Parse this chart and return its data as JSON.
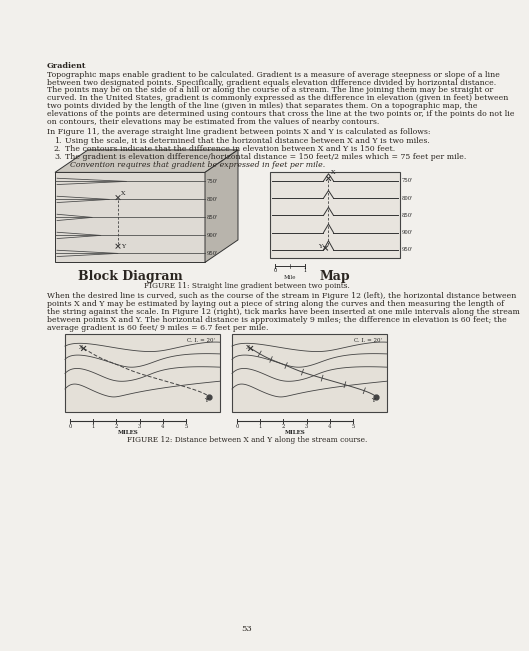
{
  "page_bg": "#f2f0ec",
  "text_color": "#2a2520",
  "title": "Gradient",
  "paragraph1_lines": [
    "Topographic maps enable gradient to be calculated. Gradient is a measure of average steepness or slope of a line",
    "between two designated points. Specifically, gradient equals elevation difference divided by horizontal distance.",
    "The points may be on the side of a hill or along the course of a stream. The line joining them may be straight or",
    "curved. In the United States, gradient is commonly expressed as the difference in elevation (given in feet) between",
    "two points divided by the length of the line (given in miles) that separates them. On a topographic map, the",
    "elevations of the points are determined using contours that cross the line at the two points or, if the points do not lie",
    "on contours, their elevations may be estimated from the values of nearby contours."
  ],
  "intro_sentence": "In Figure 11, the average straight line gradient between points X and Y is calculated as follows:",
  "list_items": [
    "Using the scale, it is determined that the horizontal distance between X and Y is two miles.",
    "The contours indicate that the difference in elevation between X and Y is 150 feet.",
    "The gradient is elevation difference/horizontal distance = 150 feet/2 miles which = 75 feet per mile.",
    "Convention requires that gradient be expressed in feet per mile."
  ],
  "block_label": "Block Diagram",
  "map_label": "Map",
  "fig11_caption": "FIGURE 11: Straight line gradient between two points.",
  "para2_lines": [
    "When the desired line is curved, such as the course of the stream in Figure 12 (left), the horizontal distance between",
    "points X and Y may be estimated by laying out a piece of string along the curves and then measuring the length of",
    "the string against the scale. In Figure 12 (right), tick marks have been inserted at one mile intervals along the stream",
    "between points X and Y. The horizontal distance is approximately 9 miles; the difference in elevation is 60 feet; the",
    "average gradient is 60 feet/ 9 miles = 6.7 feet per mile."
  ],
  "fig12_caption": "FIGURE 12: Distance between X and Y along the stream course.",
  "page_number": "53",
  "contour_labels_block": [
    "950'",
    "900'",
    "850'",
    "800'",
    "750'"
  ],
  "contour_labels_map": [
    "950'",
    "900'",
    "850'",
    "800'",
    "750'"
  ],
  "ci_label": "C. I. = 20'"
}
